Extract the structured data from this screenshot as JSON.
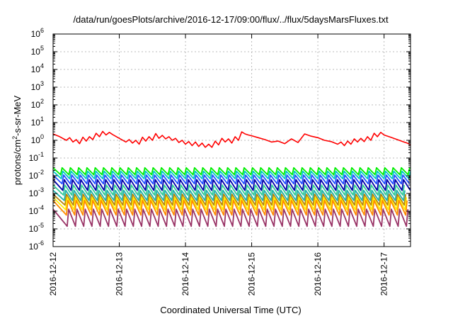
{
  "chart_data": {
    "type": "line",
    "title": "/data/run/goesPlots/archive/2016-12-17/09:00/flux/../flux/5daysMarsFluxes.txt",
    "xlabel": "Coordinated Universal Time (UTC)",
    "ylabel": "protons/cm²-s-sr-MeV",
    "ylabel_parts": {
      "base": "protons/cm",
      "sup": "2",
      "rest": "-s-sr-MeV"
    },
    "xlim": [
      0,
      5.4
    ],
    "ylog": true,
    "ylim": [
      1e-06,
      1000000.0
    ],
    "grid": true,
    "legend": "none",
    "x_ticks": [
      {
        "pos": 0,
        "label": "2016-12-12"
      },
      {
        "pos": 1,
        "label": "2016-12-13"
      },
      {
        "pos": 2,
        "label": "2016-12-14"
      },
      {
        "pos": 3,
        "label": "2016-12-15"
      },
      {
        "pos": 4,
        "label": "2016-12-16"
      },
      {
        "pos": 5,
        "label": "2016-12-17"
      }
    ],
    "y_ticks": [
      {
        "exp": -6,
        "label": "10",
        "sup": "-6"
      },
      {
        "exp": -5,
        "label": "10",
        "sup": "-5"
      },
      {
        "exp": -4,
        "label": "10",
        "sup": "-4"
      },
      {
        "exp": -3,
        "label": "10",
        "sup": "-3"
      },
      {
        "exp": -2,
        "label": "10",
        "sup": "-2"
      },
      {
        "exp": -1,
        "label": "10",
        "sup": "-1"
      },
      {
        "exp": 0,
        "label": "10",
        "sup": "0"
      },
      {
        "exp": 1,
        "label": "10",
        "sup": "1"
      },
      {
        "exp": 2,
        "label": "10",
        "sup": "2"
      },
      {
        "exp": 3,
        "label": "10",
        "sup": "3"
      },
      {
        "exp": 4,
        "label": "10",
        "sup": "4"
      },
      {
        "exp": 5,
        "label": "10",
        "sup": "5"
      },
      {
        "exp": 6,
        "label": "10",
        "sup": "6"
      }
    ],
    "series": [
      {
        "color": "#ff0000",
        "x": [
          0,
          0.1,
          0.2,
          0.25,
          0.3,
          0.35,
          0.4,
          0.45,
          0.5,
          0.55,
          0.6,
          0.65,
          0.7,
          0.75,
          0.8,
          0.85,
          0.9,
          1.0,
          1.1,
          1.15,
          1.2,
          1.25,
          1.3,
          1.35,
          1.4,
          1.45,
          1.5,
          1.55,
          1.6,
          1.65,
          1.7,
          1.75,
          1.8,
          1.85,
          1.9,
          1.95,
          2.0,
          2.05,
          2.1,
          2.15,
          2.2,
          2.25,
          2.3,
          2.35,
          2.4,
          2.45,
          2.5,
          2.55,
          2.6,
          2.65,
          2.7,
          2.75,
          2.8,
          2.85,
          2.9,
          2.95,
          3.0,
          3.1,
          3.2,
          3.3,
          3.4,
          3.5,
          3.6,
          3.7,
          3.8,
          3.9,
          4.0,
          4.1,
          4.2,
          4.3,
          4.35,
          4.4,
          4.45,
          4.5,
          4.55,
          4.6,
          4.65,
          4.7,
          4.75,
          4.8,
          4.85,
          4.9,
          4.95,
          5.0,
          5.1,
          5.2,
          5.3,
          5.35,
          5.4
        ],
        "y": [
          2.3,
          1.6,
          1.0,
          1.4,
          0.8,
          1.1,
          0.65,
          1.5,
          0.9,
          1.6,
          1.1,
          2.5,
          1.6,
          3.2,
          2.0,
          2.8,
          2.1,
          1.3,
          0.8,
          1.1,
          0.7,
          1.0,
          0.6,
          1.5,
          0.9,
          1.6,
          1.0,
          2.4,
          1.3,
          1.9,
          1.2,
          1.6,
          1.0,
          1.3,
          0.75,
          1.0,
          0.6,
          0.85,
          0.5,
          0.8,
          0.45,
          0.7,
          0.4,
          0.6,
          0.4,
          0.9,
          0.55,
          1.3,
          0.8,
          1.2,
          0.7,
          1.6,
          1.0,
          3.0,
          2.3,
          2.0,
          1.8,
          1.4,
          1.1,
          0.8,
          0.9,
          0.65,
          1.2,
          0.75,
          2.3,
          1.7,
          1.4,
          1.0,
          0.85,
          0.6,
          0.8,
          0.5,
          0.9,
          0.6,
          1.2,
          0.8,
          1.3,
          0.85,
          1.6,
          1.0,
          2.5,
          1.6,
          2.8,
          2.0,
          1.5,
          1.1,
          0.8,
          0.7,
          0.55
        ]
      },
      {
        "color": "#00ee00",
        "min": 0.0115,
        "max": 0.028
      },
      {
        "color": "#00c8c8",
        "min": 0.0068,
        "max": 0.018
      },
      {
        "color": "#2050ff",
        "min": 0.0035,
        "max": 0.011
      },
      {
        "color": "#0000aa",
        "min": 0.0015,
        "max": 0.006
      },
      {
        "color": "#33cc99",
        "min": 0.0008,
        "max": 0.003
      },
      {
        "color": "#20b2aa",
        "min": 0.0004,
        "max": 0.0015
      },
      {
        "color": "#b8860b",
        "min": 0.00022,
        "max": 0.0009
      },
      {
        "color": "#ffee00",
        "min": 0.00012,
        "max": 0.0006
      },
      {
        "color": "#ff8c00",
        "min": 6e-05,
        "max": 0.0004
      },
      {
        "color": "#993366",
        "min": 1.4e-05,
        "max": 0.00013
      }
    ]
  }
}
